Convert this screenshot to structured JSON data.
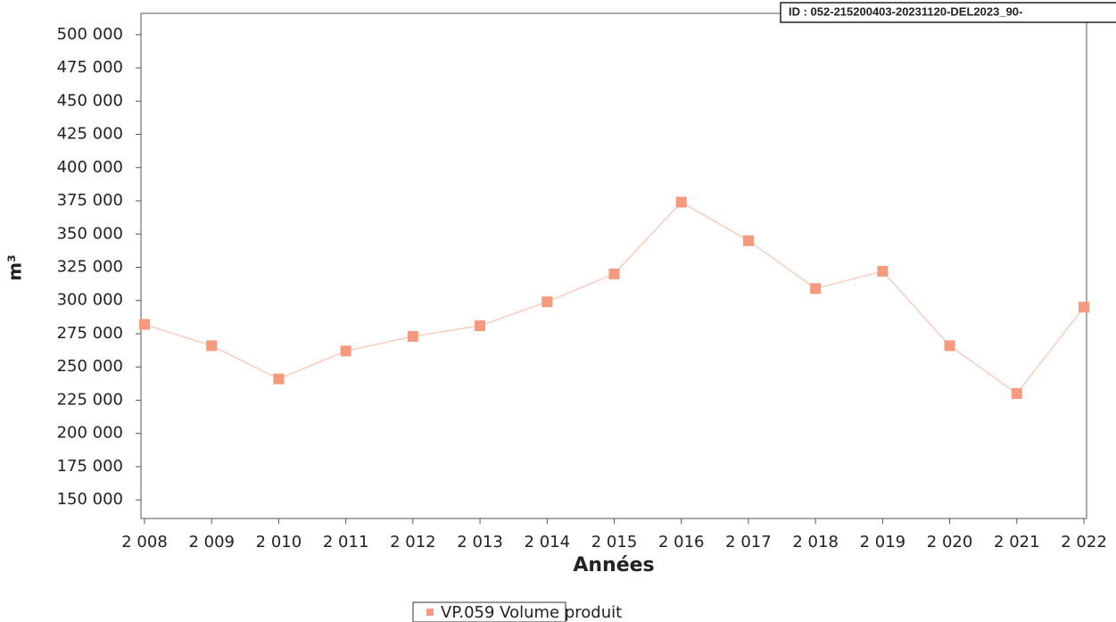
{
  "chart_data": {
    "type": "line",
    "stamp": "ID : 052-215200403-20231120-DEL2023_90-",
    "x_label": "Années",
    "y_label": "m³",
    "x": [
      2008,
      2009,
      2010,
      2011,
      2012,
      2013,
      2014,
      2015,
      2016,
      2017,
      2018,
      2019,
      2020,
      2021,
      2022
    ],
    "series": [
      {
        "name": "VP.059 Volume produit",
        "color": "#f59a7e",
        "values": [
          282000,
          266000,
          241000,
          262000,
          273000,
          281000,
          299000,
          320000,
          374000,
          345000,
          309000,
          322000,
          266000,
          230000,
          295000
        ]
      }
    ],
    "xlim": [
      2008,
      2022
    ],
    "xticks": [
      {
        "value": 2008,
        "label": "2 008"
      },
      {
        "value": 2009,
        "label": "2 009"
      },
      {
        "value": 2010,
        "label": "2 010"
      },
      {
        "value": 2011,
        "label": "2 011"
      },
      {
        "value": 2012,
        "label": "2 012"
      },
      {
        "value": 2013,
        "label": "2 013"
      },
      {
        "value": 2014,
        "label": "2 014"
      },
      {
        "value": 2015,
        "label": "2 015"
      },
      {
        "value": 2016,
        "label": "2 016"
      },
      {
        "value": 2017,
        "label": "2 017"
      },
      {
        "value": 2018,
        "label": "2 018"
      },
      {
        "value": 2019,
        "label": "2 019"
      },
      {
        "value": 2020,
        "label": "2 020"
      },
      {
        "value": 2021,
        "label": "2 021"
      },
      {
        "value": 2022,
        "label": "2 022"
      }
    ],
    "ylim": [
      136000,
      516000
    ],
    "yticks": [
      {
        "value": 150000,
        "label": "150 000"
      },
      {
        "value": 175000,
        "label": "175 000"
      },
      {
        "value": 200000,
        "label": "200 000"
      },
      {
        "value": 225000,
        "label": "225 000"
      },
      {
        "value": 250000,
        "label": "250 000"
      },
      {
        "value": 275000,
        "label": "275 000"
      },
      {
        "value": 300000,
        "label": "300 000"
      },
      {
        "value": 325000,
        "label": "325 000"
      },
      {
        "value": 350000,
        "label": "350 000"
      },
      {
        "value": 375000,
        "label": "375 000"
      },
      {
        "value": 400000,
        "label": "400 000"
      },
      {
        "value": 425000,
        "label": "425 000"
      },
      {
        "value": 450000,
        "label": "450 000"
      },
      {
        "value": 475000,
        "label": "475 000"
      },
      {
        "value": 500000,
        "label": "500 000"
      }
    ],
    "grid": false
  }
}
